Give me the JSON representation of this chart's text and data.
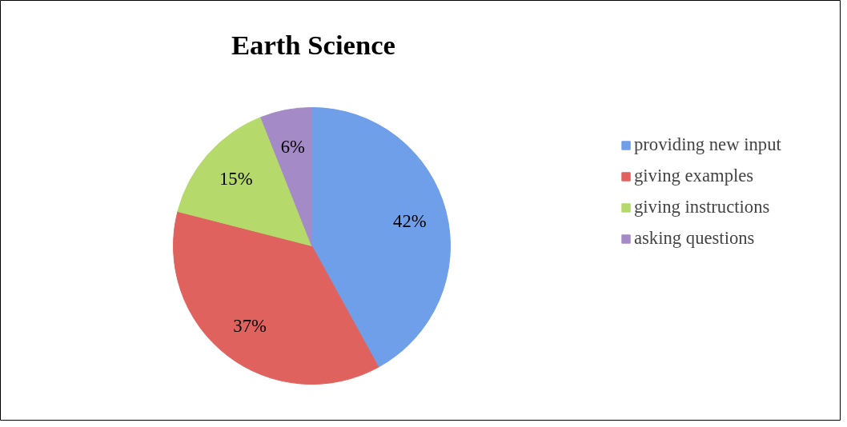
{
  "chart_data": {
    "type": "pie",
    "title": "Earth Science",
    "categories": [
      "providing new input",
      "giving examples",
      "giving instructions",
      "asking questions"
    ],
    "values": [
      42,
      37,
      15,
      6
    ],
    "colors": [
      "#6f9fe8",
      "#e0625f",
      "#b5d96a",
      "#a58ac8"
    ],
    "value_labels": [
      "42%",
      "37%",
      "15%",
      "6%"
    ],
    "legend": "right"
  }
}
